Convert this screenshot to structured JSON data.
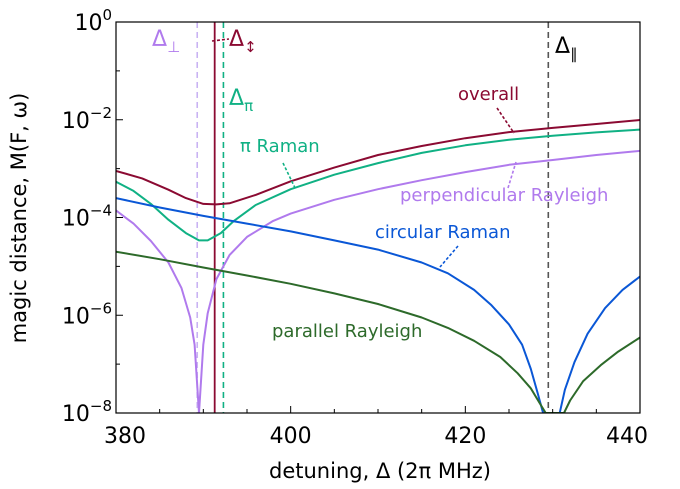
{
  "chart_data": {
    "type": "line",
    "xlabel": "detuning, Δ (2π MHz)",
    "ylabel": "magic distance, M(F, ω)",
    "xlim": [
      380,
      440
    ],
    "ylim": [
      1e-08,
      1
    ],
    "yscale": "log",
    "grid": false,
    "x_ticks": [
      "380",
      "400",
      "420",
      "440"
    ],
    "y_ticks": [
      {
        "base": "10",
        "exp": "0",
        "value": 1
      },
      {
        "base": "10",
        "exp": "−2",
        "value": 0.01
      },
      {
        "base": "10",
        "exp": "−4",
        "value": 0.0001
      },
      {
        "base": "10",
        "exp": "−6",
        "value": 1e-06
      },
      {
        "base": "10",
        "exp": "−8",
        "value": 1e-08
      }
    ],
    "series": [
      {
        "name": "overall",
        "color": "#8b0a32",
        "points": [
          [
            380,
            0.0009
          ],
          [
            383,
            0.00063
          ],
          [
            386,
            0.00037
          ],
          [
            388,
            0.00025
          ],
          [
            390,
            0.00019
          ],
          [
            391.5,
            0.000185
          ],
          [
            393,
            0.000195
          ],
          [
            396,
            0.00029
          ],
          [
            400,
            0.00055
          ],
          [
            405,
            0.00105
          ],
          [
            410,
            0.0019
          ],
          [
            415,
            0.0029
          ],
          [
            420,
            0.0042
          ],
          [
            425,
            0.0056
          ],
          [
            430,
            0.0068
          ],
          [
            435,
            0.0082
          ],
          [
            440,
            0.0099
          ]
        ]
      },
      {
        "name": "π Raman",
        "color": "#10b184",
        "points": [
          [
            380,
            0.00054
          ],
          [
            382,
            0.00035
          ],
          [
            384,
            0.00019
          ],
          [
            386,
            9e-05
          ],
          [
            388,
            4.8e-05
          ],
          [
            389.5,
            3.4e-05
          ],
          [
            390.5,
            3.4e-05
          ],
          [
            392,
            4.8e-05
          ],
          [
            393.5,
            8.5e-05
          ],
          [
            396,
            0.00018
          ],
          [
            400,
            0.00038
          ],
          [
            405,
            0.00075
          ],
          [
            410,
            0.0013
          ],
          [
            415,
            0.0021
          ],
          [
            420,
            0.003
          ],
          [
            425,
            0.0039
          ],
          [
            430,
            0.0047
          ],
          [
            435,
            0.0055
          ],
          [
            440,
            0.0063
          ]
        ]
      },
      {
        "name": "perpendicular Rayleigh",
        "color": "#b07aed",
        "points": [
          [
            380,
            0.00014
          ],
          [
            382,
            7.5e-05
          ],
          [
            384,
            3.3e-05
          ],
          [
            386,
            1.2e-05
          ],
          [
            387.5,
            3.6e-06
          ],
          [
            388.5,
            9e-07
          ],
          [
            389,
            2.5e-07
          ],
          [
            389.5,
            1e-08
          ],
          [
            390,
            2.5e-07
          ],
          [
            390.5,
            1.1e-06
          ],
          [
            391.5,
            5.5e-06
          ],
          [
            393,
            1.7e-05
          ],
          [
            395,
            4e-05
          ],
          [
            398,
            8.5e-05
          ],
          [
            400,
            0.00012
          ],
          [
            405,
            0.00023
          ],
          [
            410,
            0.00038
          ],
          [
            415,
            0.00058
          ],
          [
            420,
            0.00085
          ],
          [
            425,
            0.0012
          ],
          [
            430,
            0.0015
          ],
          [
            435,
            0.0019
          ],
          [
            440,
            0.0023
          ]
        ]
      },
      {
        "name": "circular Raman",
        "color": "#0a57d6",
        "points": [
          [
            380,
            0.00025
          ],
          [
            385,
            0.00016
          ],
          [
            390,
            0.000108
          ],
          [
            395,
            7.5e-05
          ],
          [
            400,
            5.2e-05
          ],
          [
            405,
            3.4e-05
          ],
          [
            410,
            2.2e-05
          ],
          [
            415,
            1.2e-05
          ],
          [
            418,
            7.2e-06
          ],
          [
            421,
            3.3e-06
          ],
          [
            423,
            1.6e-06
          ],
          [
            425,
            6.5e-07
          ],
          [
            426.5,
            2.5e-07
          ],
          [
            427.5,
            8e-08
          ],
          [
            428.3,
            2.5e-08
          ],
          [
            428.9,
            1e-08
          ],
          [
            430.8,
            1e-08
          ],
          [
            431.4,
            3e-08
          ],
          [
            432.5,
            1.1e-07
          ],
          [
            434,
            4.2e-07
          ],
          [
            436,
            1.4e-06
          ],
          [
            438,
            3.3e-06
          ],
          [
            440,
            6.2e-06
          ]
        ]
      },
      {
        "name": "parallel Rayleigh",
        "color": "#2d6a2a",
        "points": [
          [
            380,
            2e-05
          ],
          [
            385,
            1.4e-05
          ],
          [
            390,
            9.5e-06
          ],
          [
            395,
            6.5e-06
          ],
          [
            400,
            4.4e-06
          ],
          [
            405,
            2.8e-06
          ],
          [
            410,
            1.7e-06
          ],
          [
            415,
            9e-07
          ],
          [
            418,
            5.5e-07
          ],
          [
            421,
            3e-07
          ],
          [
            424,
            1.4e-07
          ],
          [
            426,
            6.5e-08
          ],
          [
            427.5,
            3.2e-08
          ],
          [
            428.5,
            1.6e-08
          ],
          [
            429.2,
            1e-08
          ],
          [
            431.3,
            1e-08
          ],
          [
            432,
            1.8e-08
          ],
          [
            433.5,
            4.5e-08
          ],
          [
            435.5,
            9.5e-08
          ],
          [
            437.5,
            1.8e-07
          ],
          [
            440,
            3.5e-07
          ]
        ]
      }
    ],
    "vlines": [
      {
        "name": "Δ⊥",
        "x": 389.3,
        "color": "#c9b3f2",
        "dashed": true
      },
      {
        "name": "Δ↕",
        "x": 391.3,
        "color": "#8b0a32",
        "dashed": false
      },
      {
        "name": "Δπ",
        "x": 392.3,
        "color": "#10b184",
        "dashed": true
      },
      {
        "name": "Δ∥",
        "x": 429.5,
        "color": "#555555",
        "dashed": true
      }
    ],
    "markers": [
      {
        "key": "perp",
        "base": "Δ",
        "sub": "⊥",
        "color": "#b07aed"
      },
      {
        "key": "circ",
        "base": "Δ",
        "sub": "↕",
        "color": "#8b0a32"
      },
      {
        "key": "pi",
        "base": "Δ",
        "sub": "π",
        "color": "#10b184"
      },
      {
        "key": "par",
        "base": "Δ",
        "sub": "∥",
        "color": "#000000"
      }
    ],
    "annotations": [
      {
        "key": "overall",
        "text": "overall",
        "color": "#8b0a32"
      },
      {
        "key": "piRaman",
        "text": "π Raman",
        "color": "#10b184"
      },
      {
        "key": "perpRayleigh",
        "text": "perpendicular Rayleigh",
        "color": "#b07aed"
      },
      {
        "key": "circRaman",
        "text": "circular Raman",
        "color": "#0a57d6"
      },
      {
        "key": "parRayleigh",
        "text": "parallel Rayleigh",
        "color": "#2d6a2a"
      }
    ]
  }
}
